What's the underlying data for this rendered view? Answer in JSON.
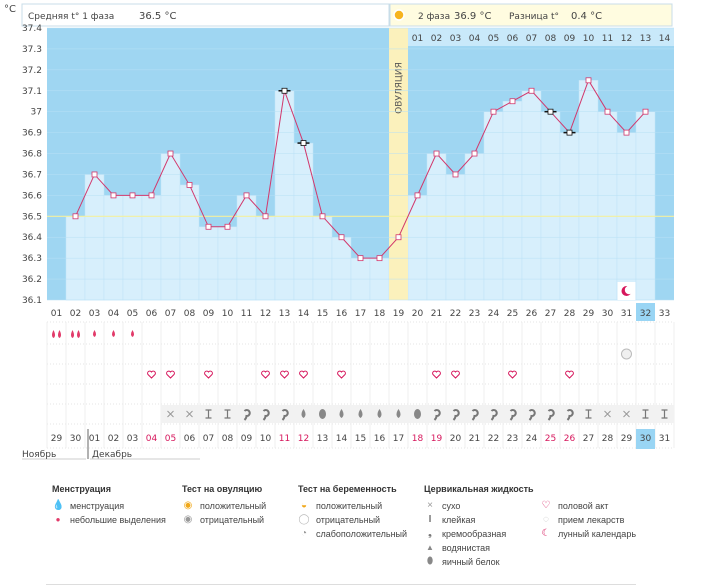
{
  "header": {
    "unit": "°C",
    "phase1_label": "Средняя t° 1 фаза",
    "phase1_value": "36.5 °C",
    "phase2_label": "2 фаза",
    "phase2_value": "36.9 °C",
    "diff_label": "Разница t°",
    "diff_value": "0.4 °C",
    "ovulation_label": "ОВУЛЯЦИЯ"
  },
  "chart_data": {
    "type": "line",
    "ylim": [
      36.1,
      37.4
    ],
    "yticks": [
      "36.1",
      "36.2",
      "36.3",
      "36.4",
      "36.5",
      "36.6",
      "36.7",
      "36.8",
      "36.9",
      "37",
      "37.1",
      "37.2",
      "37.3",
      "37.4"
    ],
    "x": [
      "01",
      "02",
      "03",
      "04",
      "05",
      "06",
      "07",
      "08",
      "09",
      "10",
      "11",
      "12",
      "13",
      "14",
      "15",
      "16",
      "17",
      "18",
      "19",
      "20",
      "21",
      "22",
      "23",
      "24",
      "25",
      "26",
      "27",
      "28",
      "29",
      "30",
      "31",
      "32",
      "33"
    ],
    "values": [
      null,
      36.5,
      36.7,
      36.6,
      36.6,
      36.6,
      36.8,
      36.65,
      36.45,
      36.45,
      36.6,
      36.5,
      37.1,
      36.85,
      36.5,
      36.4,
      36.3,
      36.3,
      36.4,
      36.6,
      36.8,
      36.7,
      36.8,
      37.0,
      37.05,
      37.1,
      37.0,
      36.9,
      37.15,
      37.0,
      36.9,
      37.0,
      null
    ],
    "marker_types": [
      "",
      "sq",
      "sq",
      "sq",
      "sq",
      "sq",
      "sq",
      "sq",
      "sq",
      "sq",
      "sq",
      "sq",
      "bar",
      "bar",
      "sq",
      "sq",
      "sq",
      "sq",
      "sq",
      "sq",
      "sq",
      "sq",
      "sq",
      "sq",
      "sq",
      "sq",
      "bar",
      "bar",
      "sq",
      "sq",
      "sq",
      "sq",
      ""
    ],
    "coverline": 36.5,
    "ovulation_day": 19,
    "phase2_day_labels": [
      "01",
      "02",
      "03",
      "04",
      "05",
      "06",
      "07",
      "08",
      "09",
      "10",
      "11",
      "12",
      "13",
      "14"
    ],
    "highlight_cycle_day": "32",
    "calendar_dates": [
      "29",
      "30",
      "01",
      "02",
      "03",
      "04",
      "05",
      "06",
      "07",
      "08",
      "09",
      "10",
      "11",
      "12",
      "13",
      "14",
      "15",
      "16",
      "17",
      "18",
      "19",
      "20",
      "21",
      "22",
      "23",
      "24",
      "25",
      "26",
      "27",
      "28",
      "29",
      "30",
      "31"
    ],
    "weekend_dates": [
      6,
      7,
      13,
      14,
      20,
      21,
      27,
      28
    ],
    "highlight_date": 32,
    "month_labels": [
      "Ноябрь",
      "Декабрь"
    ],
    "menstruation": [
      "big",
      "big",
      "small",
      "small",
      "small",
      "",
      "",
      "",
      "",
      "",
      "",
      "",
      "",
      "",
      "",
      "",
      "",
      "",
      "",
      "",
      "",
      "",
      "",
      "",
      "",
      "",
      "",
      "",
      "",
      "",
      "",
      "",
      ""
    ],
    "pregnancy_tests": {
      "31": "negative"
    },
    "lunar_day": 31,
    "intercourse_days": [
      6,
      7,
      9,
      12,
      13,
      14,
      16,
      21,
      22,
      25,
      28
    ],
    "cervical_fluid": [
      "",
      "",
      "",
      "",
      "",
      "",
      "dry",
      "dry",
      "sticky",
      "sticky",
      "creamy",
      "creamy",
      "creamy",
      "watery",
      "egg",
      "watery",
      "watery",
      "watery",
      "watery",
      "egg",
      "creamy",
      "creamy",
      "creamy",
      "creamy",
      "creamy",
      "creamy",
      "creamy",
      "creamy",
      "sticky",
      "dry",
      "dry",
      "sticky",
      "sticky"
    ],
    "colors": {
      "grid_bg": "#9fd6f2",
      "bar": "#d7effc",
      "line": "#d2386c",
      "coverline": "#f3f0a0",
      "ovulation": "#fbf1bc",
      "phase_bg": "#fffce0",
      "weekend": "#d6175c",
      "highlight": "#99d5f4"
    }
  },
  "legend": {
    "menstruation": {
      "title": "Менструация",
      "items": [
        "менструация",
        "небольшие выделения"
      ]
    },
    "ovulation_test": {
      "title": "Тест на овуляцию",
      "items": [
        "положительный",
        "отрицательный"
      ]
    },
    "pregnancy_test": {
      "title": "Тест на беременность",
      "items": [
        "положительный",
        "отрицательный",
        "слабоположительный"
      ]
    },
    "cervical": {
      "title": "Цервикальная жидкость",
      "items": [
        "сухо",
        "клейкая",
        "кремообразная",
        "водянистая",
        "яичный белок"
      ]
    },
    "other": {
      "items": [
        "половой акт",
        "прием лекарств",
        "лунный календарь"
      ]
    }
  }
}
